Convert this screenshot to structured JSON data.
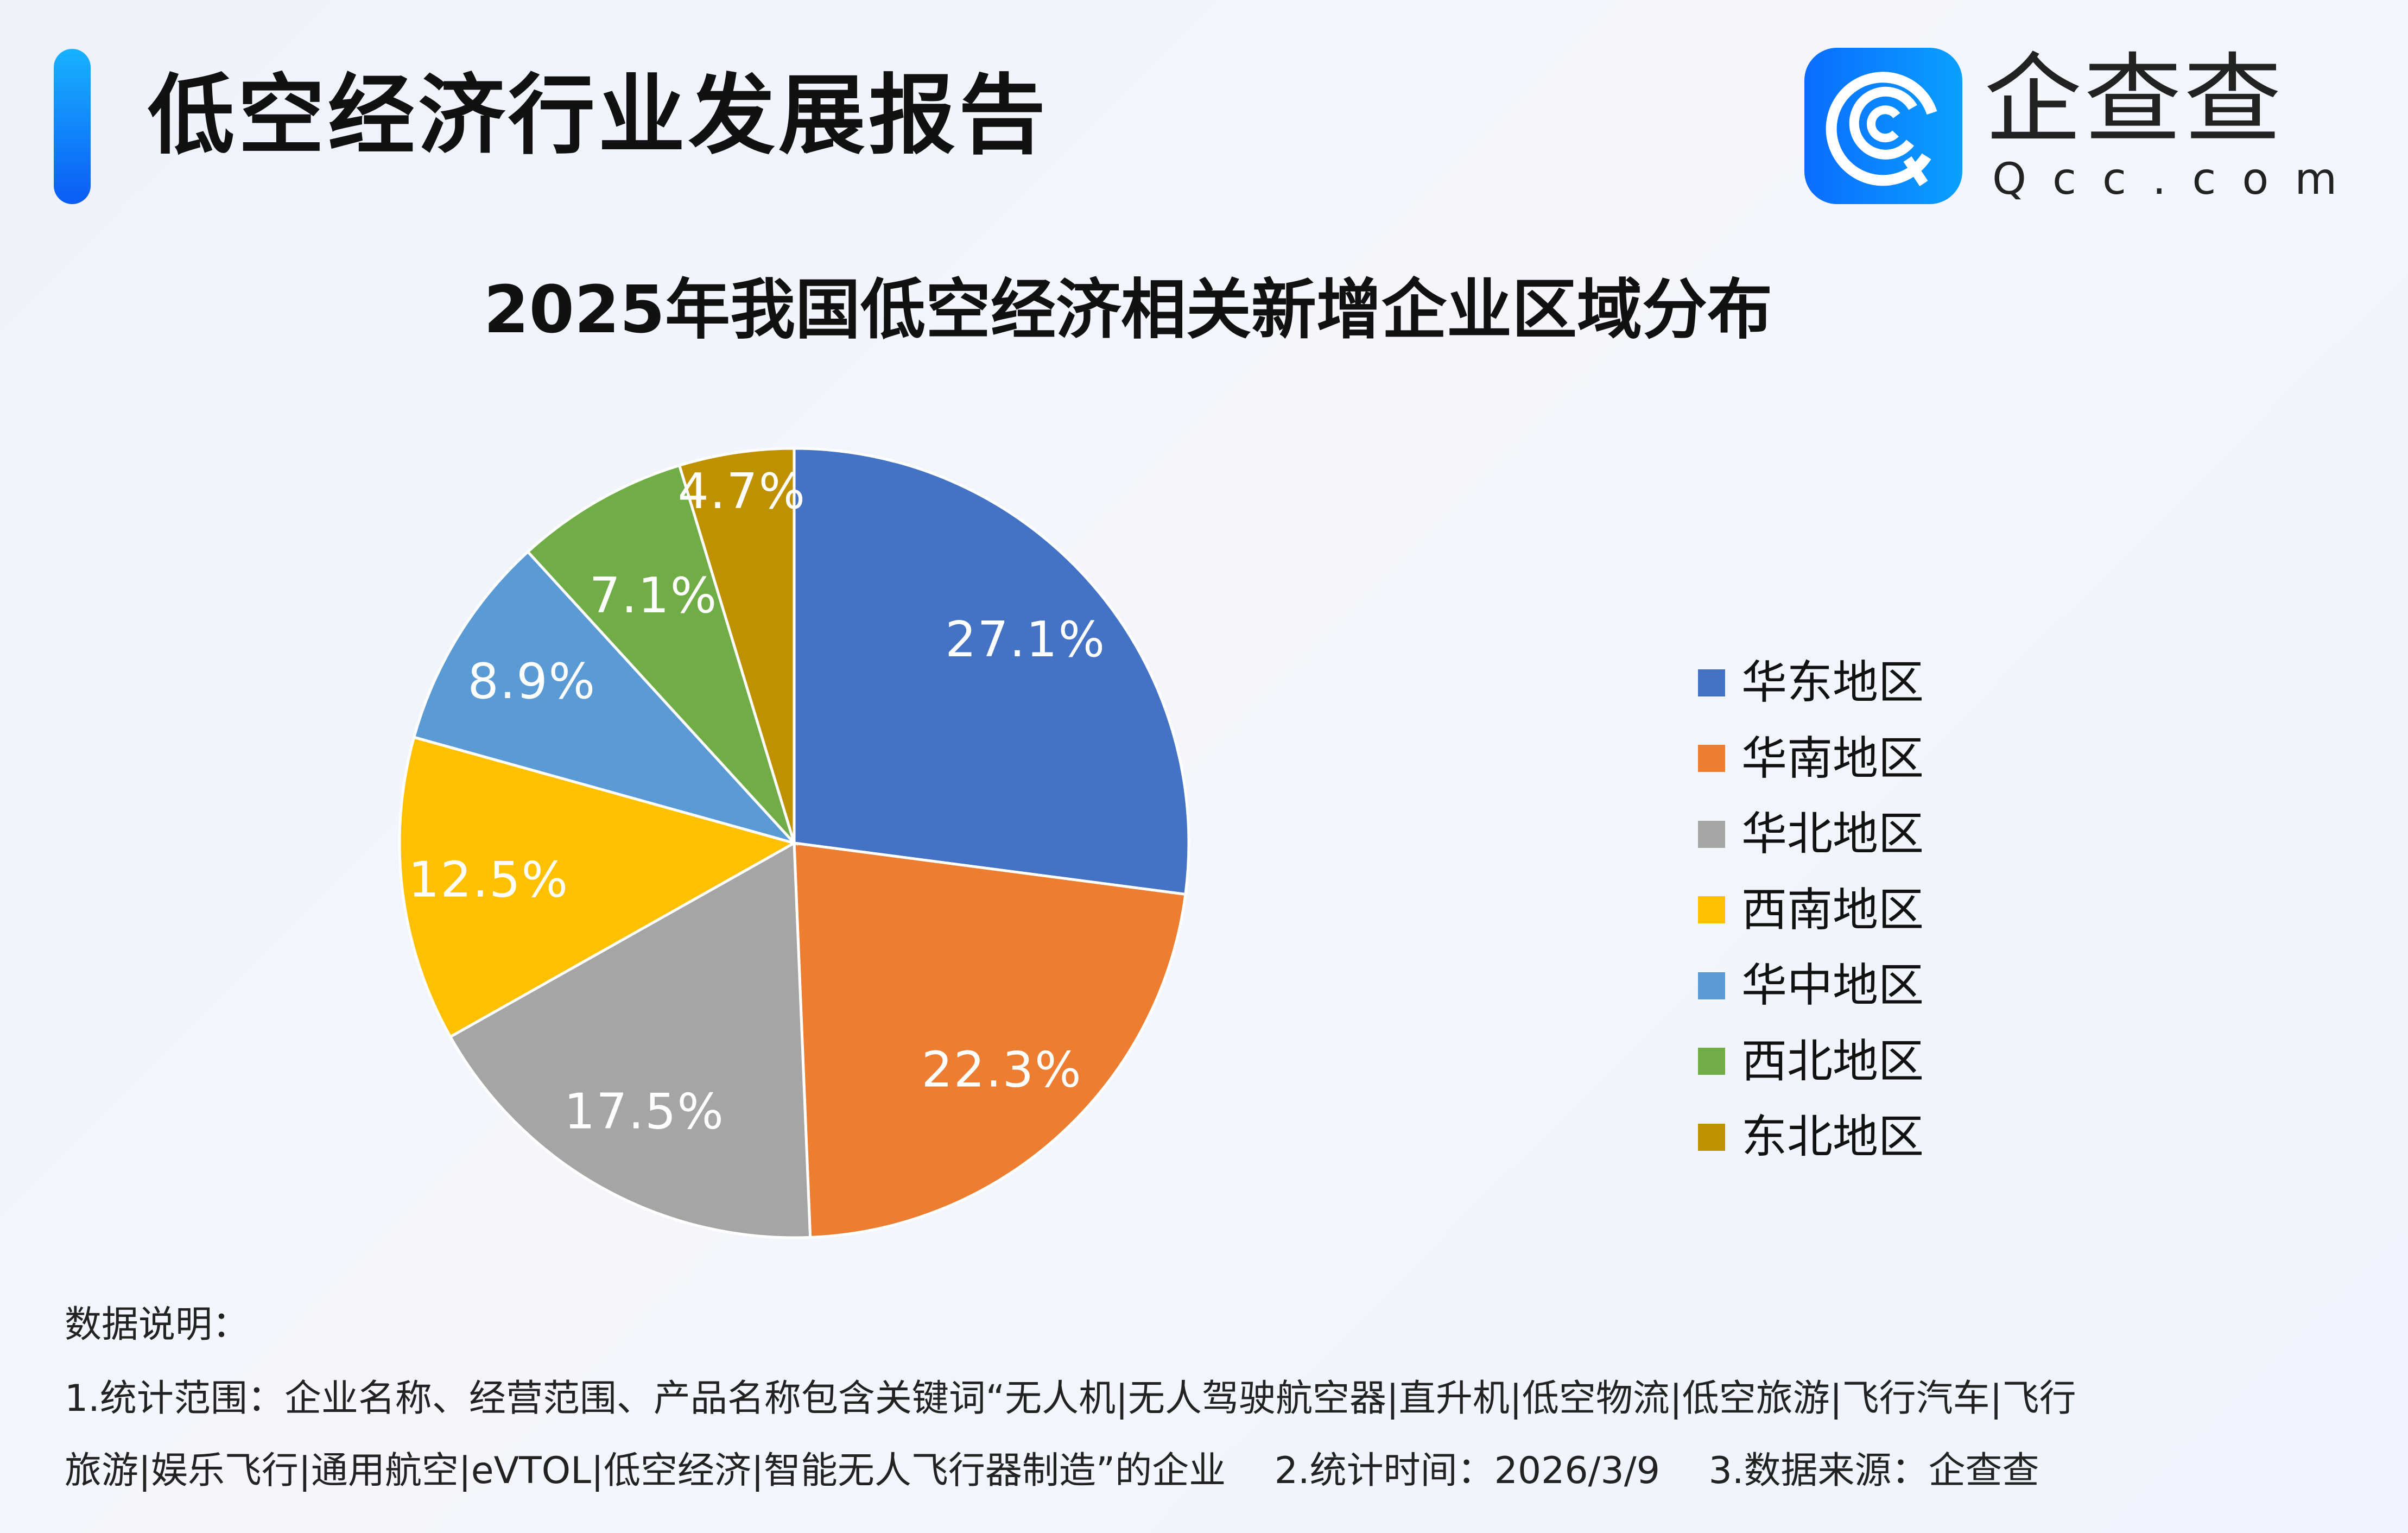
{
  "header": {
    "report_title": "低空经济行业发展报告",
    "logo_cn": "企查查",
    "logo_en": "Qcc.com"
  },
  "chart_data": {
    "type": "pie",
    "title": "2025年我国低空经济相关新增企业区域分布",
    "legend_position": "right",
    "start": "top, clockwise",
    "slices": [
      {
        "name": "华东地区",
        "value": 27.1,
        "label": "27.1%",
        "color": "#4472C4"
      },
      {
        "name": "华南地区",
        "value": 22.3,
        "label": "22.3%",
        "color": "#ED7D31"
      },
      {
        "name": "华北地区",
        "value": 17.5,
        "label": "17.5%",
        "color": "#A5A5A5"
      },
      {
        "name": "西南地区",
        "value": 12.5,
        "label": "12.5%",
        "color": "#FFC000"
      },
      {
        "name": "华中地区",
        "value": 8.9,
        "label": "8.9%",
        "color": "#5B9BD5"
      },
      {
        "name": "西北地区",
        "value": 7.1,
        "label": "7.1%",
        "color": "#70AD47"
      },
      {
        "name": "东北地区",
        "value": 4.7,
        "label": "4.7%",
        "color": "#BF9000"
      }
    ]
  },
  "notes": {
    "heading": "数据说明：",
    "line1": "1.统计范围：企业名称、经营范围、产品名称包含关键词“无人机|无人驾驶航空器|直升机|低空物流|低空旅游|飞行汽车|飞行",
    "line2": "旅游|娱乐飞行|通用航空|eVTOL|低空经济|智能无人飞行器制造”的企业　 2.统计时间：2026/3/9　 3.数据来源：企查查"
  }
}
